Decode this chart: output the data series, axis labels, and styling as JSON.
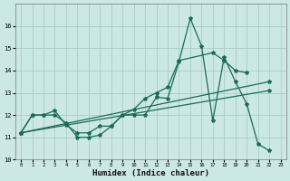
{
  "xlabel": "Humidex (Indice chaleur)",
  "background_color": "#cce8e5",
  "grid_color": "#aaccc8",
  "line_color": "#1a6b5a",
  "xlim": [
    -0.5,
    23.5
  ],
  "ylim": [
    10.0,
    17.0
  ],
  "yticks": [
    10,
    11,
    12,
    13,
    14,
    15,
    16
  ],
  "xticks": [
    0,
    1,
    2,
    3,
    4,
    5,
    6,
    7,
    8,
    9,
    10,
    11,
    12,
    13,
    14,
    15,
    16,
    17,
    18,
    19,
    20,
    21,
    22,
    23
  ],
  "series": [
    {
      "x": [
        0,
        1,
        2,
        3,
        4,
        5,
        6,
        7,
        8,
        9,
        10,
        11,
        12,
        13,
        14,
        15,
        16,
        17,
        18,
        19,
        20,
        21,
        22
      ],
      "y": [
        11.2,
        12.0,
        12.0,
        12.0,
        11.65,
        11.0,
        11.0,
        11.1,
        11.5,
        12.0,
        12.0,
        12.0,
        12.8,
        12.75,
        14.4,
        16.35,
        15.1,
        11.75,
        14.6,
        13.5,
        12.5,
        10.7,
        10.4
      ]
    },
    {
      "x": [
        0,
        1,
        2,
        3,
        4,
        5,
        6,
        7,
        8,
        9,
        10,
        11,
        12,
        13,
        14,
        17,
        18,
        19,
        20
      ],
      "y": [
        11.2,
        12.0,
        12.0,
        12.2,
        11.55,
        11.2,
        11.2,
        11.5,
        11.5,
        12.0,
        12.25,
        12.75,
        13.0,
        13.25,
        14.45,
        14.8,
        14.45,
        14.0,
        13.9
      ]
    },
    {
      "x": [
        0,
        22
      ],
      "y": [
        11.2,
        13.5
      ]
    },
    {
      "x": [
        0,
        22
      ],
      "y": [
        11.2,
        13.1
      ]
    }
  ]
}
